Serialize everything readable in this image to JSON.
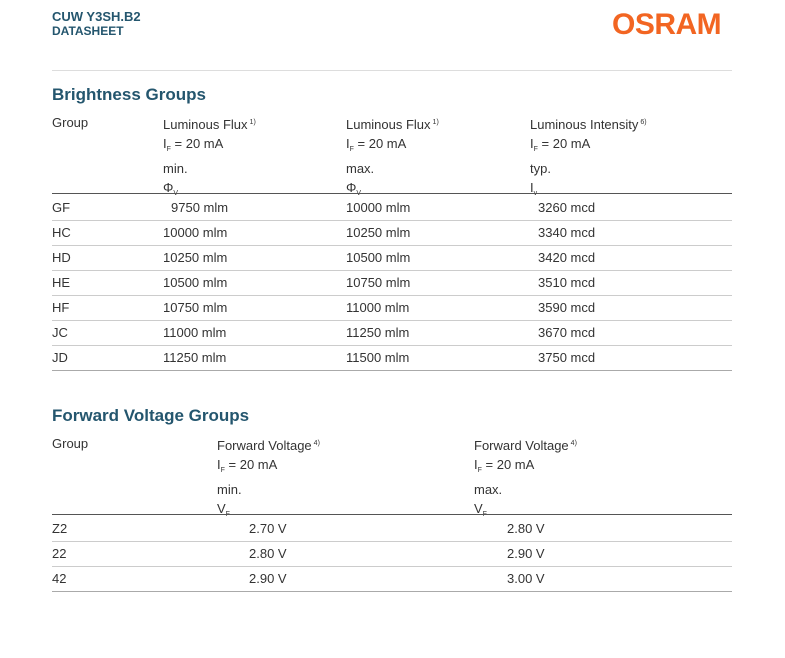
{
  "header": {
    "product": "CUW Y3SH.B2",
    "doc_type": "DATASHEET",
    "logo": "OSRAM",
    "brand_color": "#f26522",
    "title_color": "#24566e"
  },
  "brightness": {
    "title": "Brightness Groups",
    "group_label": "Group",
    "columns": [
      {
        "name": "Luminous Flux",
        "note": "1)",
        "condition": "I",
        "cond_sub": "F",
        "condition_value": " = 20 mA",
        "stat": "min.",
        "symbol": "Φ",
        "symbol_sub": "V"
      },
      {
        "name": "Luminous Flux",
        "note": "1)",
        "condition": "I",
        "cond_sub": "F",
        "condition_value": " = 20 mA",
        "stat": "max.",
        "symbol": "Φ",
        "symbol_sub": "V"
      },
      {
        "name": "Luminous Intensity",
        "note": "6)",
        "condition": "I",
        "cond_sub": "F",
        "condition_value": " = 20 mA",
        "stat": "typ.",
        "symbol": "I",
        "symbol_sub": "v"
      }
    ],
    "rows": [
      {
        "group": "GF",
        "min": "9750 mlm",
        "max": "10000 mlm",
        "typ": "3260 mcd"
      },
      {
        "group": "HC",
        "min": "10000 mlm",
        "max": "10250 mlm",
        "typ": "3340 mcd"
      },
      {
        "group": "HD",
        "min": "10250 mlm",
        "max": "10500 mlm",
        "typ": "3420 mcd"
      },
      {
        "group": "HE",
        "min": "10500 mlm",
        "max": "10750 mlm",
        "typ": "3510 mcd"
      },
      {
        "group": "HF",
        "min": "10750 mlm",
        "max": "11000 mlm",
        "typ": "3590 mcd"
      },
      {
        "group": "JC",
        "min": "11000 mlm",
        "max": "11250 mlm",
        "typ": "3670 mcd"
      },
      {
        "group": "JD",
        "min": "11250 mlm",
        "max": "11500 mlm",
        "typ": "3750 mcd"
      }
    ]
  },
  "voltage": {
    "title": "Forward Voltage Groups",
    "group_label": "Group",
    "columns": [
      {
        "name": "Forward Voltage",
        "note": "4)",
        "condition": "I",
        "cond_sub": "F",
        "condition_value": " = 20 mA",
        "stat": "min.",
        "symbol": "V",
        "symbol_sub": "F"
      },
      {
        "name": "Forward Voltage",
        "note": "4)",
        "condition": "I",
        "cond_sub": "F",
        "condition_value": " = 20 mA",
        "stat": "max.",
        "symbol": "V",
        "symbol_sub": "F"
      }
    ],
    "rows": [
      {
        "group": "Z2",
        "min": "2.70 V",
        "max": "2.80 V"
      },
      {
        "group": "22",
        "min": "2.80 V",
        "max": "2.90 V"
      },
      {
        "group": "42",
        "min": "2.90 V",
        "max": "3.00 V"
      }
    ]
  }
}
